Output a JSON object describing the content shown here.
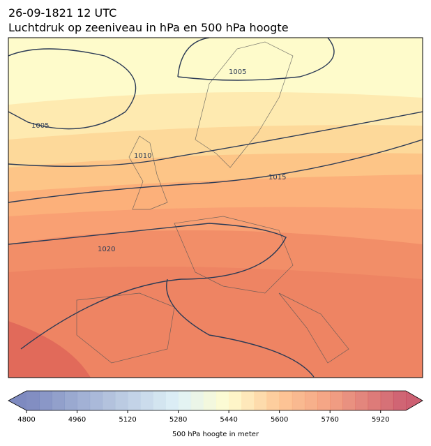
{
  "header": {
    "title": "26-09-1821 12 UTC",
    "subtitle": "Luchtdruk op zeeniveau in hPa en 500 hPa hoogte"
  },
  "map": {
    "isobar_labels": [
      1005,
      1005,
      1010,
      1015,
      1020
    ]
  },
  "colorbar": {
    "lim": [
      4800,
      6000
    ],
    "step": 40,
    "ticks": [
      4800,
      4960,
      5120,
      5280,
      5440,
      5600,
      5760,
      5920
    ],
    "label": "500 hPa hoogte in meter"
  }
}
